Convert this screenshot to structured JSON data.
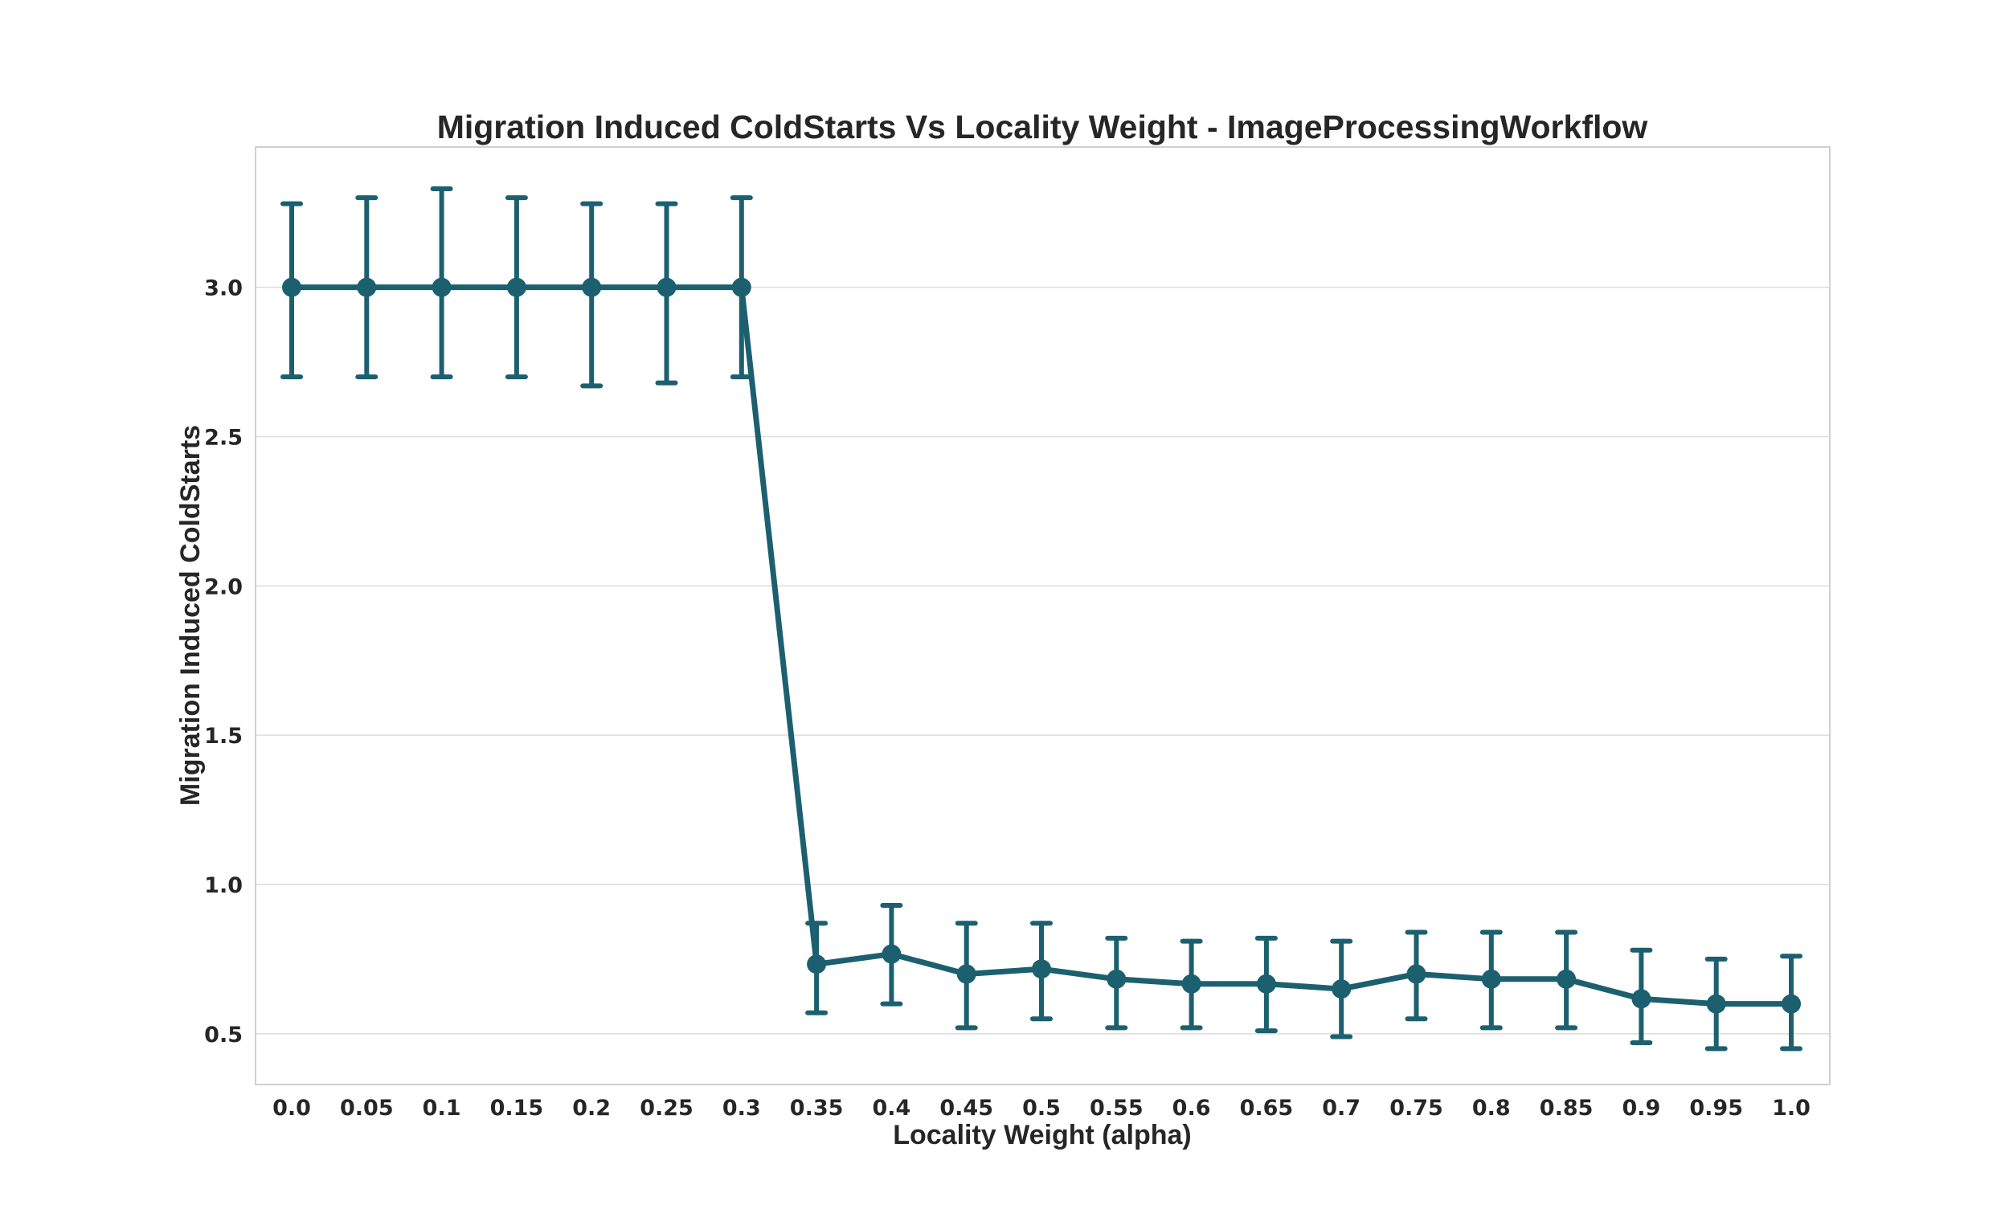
{
  "chart_data": {
    "type": "line",
    "title": "Migration Induced ColdStarts Vs Locality Weight - ImageProcessingWorkflow",
    "xlabel": "Locality Weight (alpha)",
    "ylabel": "Migration Induced ColdStarts",
    "categories": [
      "0.0",
      "0.05",
      "0.1",
      "0.15",
      "0.2",
      "0.25",
      "0.3",
      "0.35",
      "0.4",
      "0.45",
      "0.5",
      "0.55",
      "0.6",
      "0.65",
      "0.7",
      "0.75",
      "0.8",
      "0.85",
      "0.9",
      "0.95",
      "1.0"
    ],
    "yticks": [
      "0.5",
      "1.0",
      "1.5",
      "2.0",
      "2.5",
      "3.0"
    ],
    "ylim": [
      0.33,
      3.47
    ],
    "grid": true,
    "legend": "none",
    "series_color": "#1c6070",
    "values": [
      3.0,
      3.0,
      3.0,
      3.0,
      3.0,
      3.0,
      3.0,
      0.733,
      0.767,
      0.7,
      0.717,
      0.683,
      0.667,
      0.667,
      0.65,
      0.7,
      0.683,
      0.683,
      0.617,
      0.6,
      0.6
    ],
    "error_low": [
      2.7,
      2.7,
      2.7,
      2.7,
      2.67,
      2.68,
      2.7,
      0.57,
      0.6,
      0.52,
      0.55,
      0.52,
      0.52,
      0.51,
      0.49,
      0.55,
      0.52,
      0.52,
      0.47,
      0.45,
      0.45
    ],
    "error_high": [
      3.28,
      3.3,
      3.33,
      3.3,
      3.28,
      3.28,
      3.3,
      0.87,
      0.93,
      0.87,
      0.87,
      0.82,
      0.81,
      0.82,
      0.81,
      0.84,
      0.84,
      0.84,
      0.78,
      0.75,
      0.76
    ]
  }
}
